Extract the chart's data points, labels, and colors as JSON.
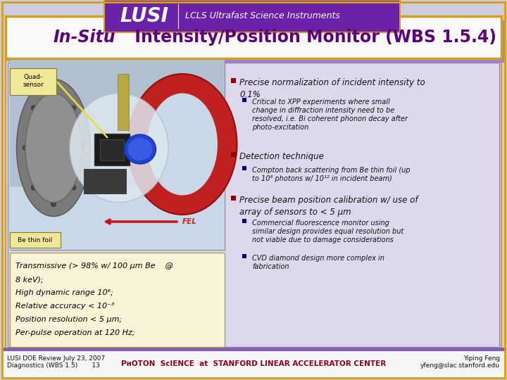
{
  "bg_color": "#d0cce0",
  "header_bg": "#6b21a8",
  "title_box_bg": "#ffffff",
  "title_box_border": "#d4a017",
  "title_shadow_color": "#9b7fd4",
  "title_text_italic": "In-Situ",
  "title_text_normal": " Intensity/Position Monitor (WBS 1.5.4)",
  "title_color": "#5c0080",
  "lusi_text": "LUSI",
  "lcls_text": "LCLS Ultrafast Science Instruments",
  "header_text_color": "#ffffff",
  "footer_left": "LUSI DOE Review July 23, 2007\nDiagnostics (WBS 1.5)       13",
  "footer_right": "Yiping Feng\nyfeng@slac.stanford.edu",
  "bottom_left_text_line1": "Transmissive (> 98% w/ 100 μm Be    @",
  "bottom_left_text_line2": "8 keV);",
  "bottom_left_text_line3": "High dynamic range 10⁶;",
  "bottom_left_text_line4": "Relative accuracy < 10⁻³",
  "bottom_left_text_line5": "Position resolution < 5 μm;",
  "bottom_left_text_line6": "Per-pulse operation at 120 Hz;",
  "quad_label": "Quad-\nsensor",
  "fel_label": "FEL",
  "be_label": "Be thin foil",
  "outer_border_color": "#d4a017",
  "inner_border_color": "#9b7fd4",
  "image_bg": "#a8b8c8",
  "image_bg2": "#c0d0e0"
}
